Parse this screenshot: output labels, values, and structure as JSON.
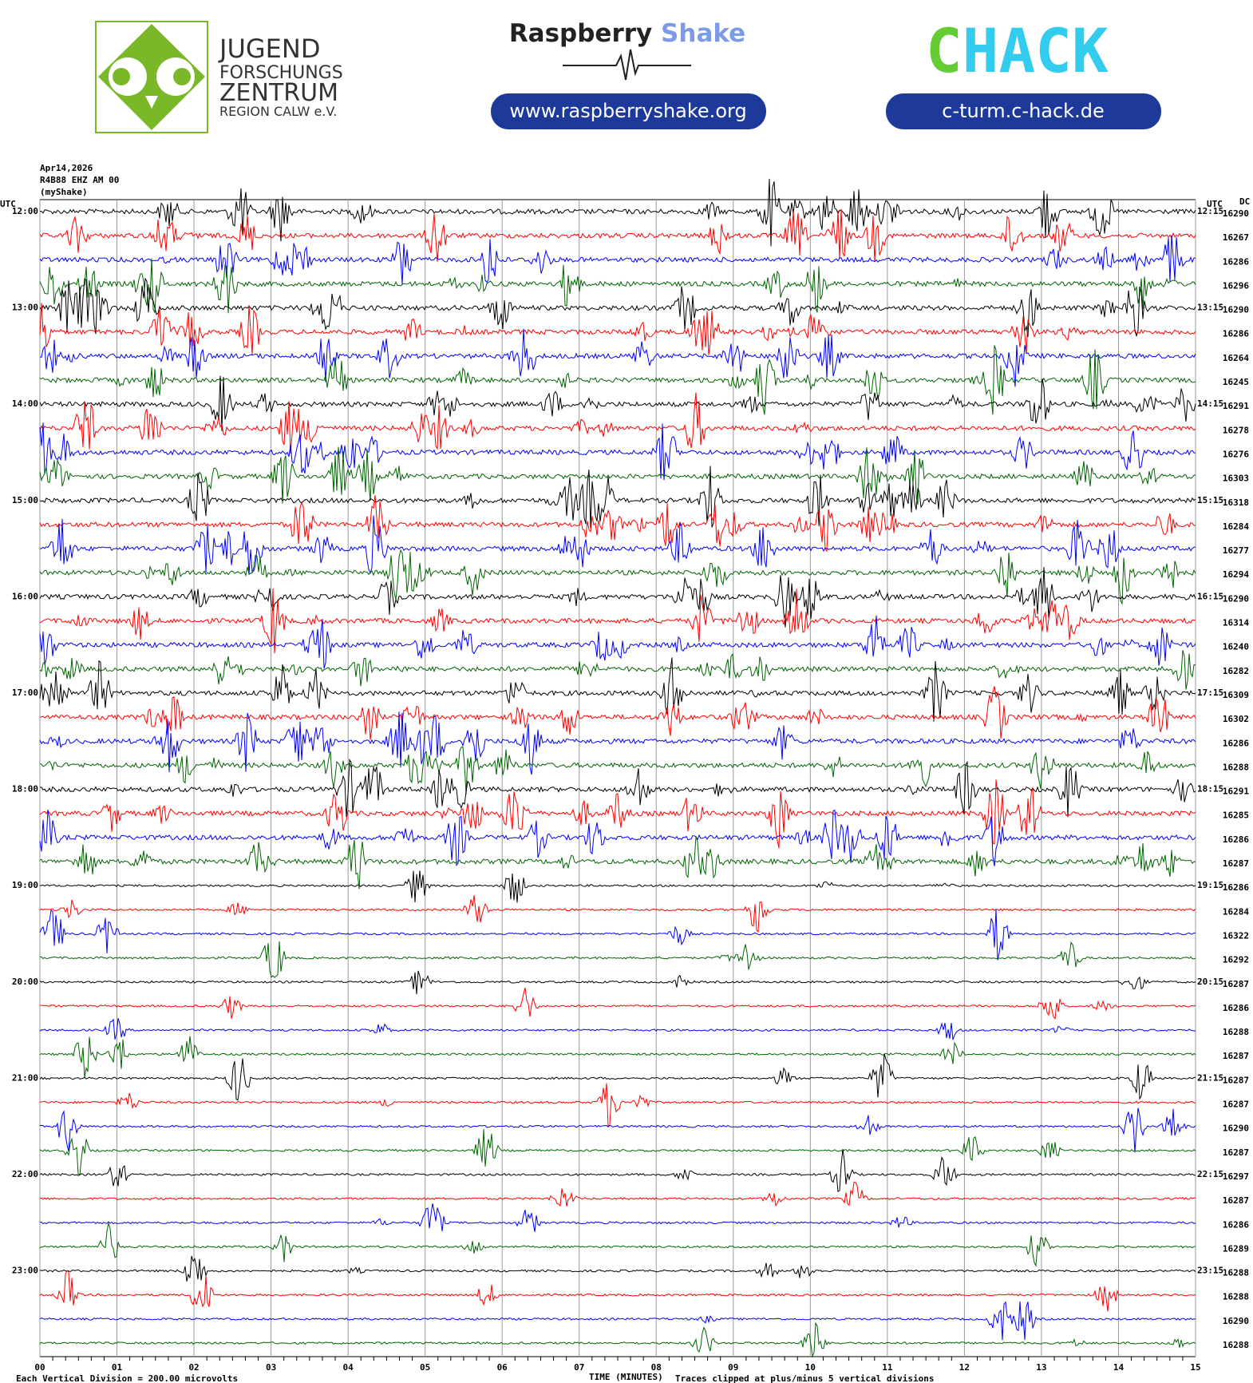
{
  "header": {
    "logo_lines": [
      "JUGEND",
      "FORSCHUNGS",
      "ZENTRUM",
      "REGION CALW e.V."
    ],
    "brand_1": "Raspberry",
    "brand_2": "Shake",
    "url_1": "www.raspberryshake.org",
    "url_2": "c-turm.c-hack.de",
    "chack_c": "C",
    "chack_rest": "HACK"
  },
  "plot": {
    "date": "Apr14,2026",
    "station": "R4B88 EHZ AM 00",
    "source": "(myShake)",
    "utc_left": "UTC",
    "utc_right": "UTC",
    "dc_header": "DC",
    "left_times": [
      "12:00",
      "13:00",
      "14:00",
      "15:00",
      "16:00",
      "17:00",
      "18:00",
      "19:00",
      "20:00",
      "21:00",
      "22:00",
      "23:00"
    ],
    "right_times": [
      "12:15",
      "13:15",
      "14:15",
      "15:15",
      "16:15",
      "17:15",
      "18:15",
      "19:15",
      "20:15",
      "21:15",
      "22:15",
      "23:15"
    ],
    "dc_values": [
      "16290",
      "16267",
      "16286",
      "16296",
      "16290",
      "16286",
      "16264",
      "16245",
      "16291",
      "16278",
      "16276",
      "16303",
      "16318",
      "16284",
      "16277",
      "16294",
      "16290",
      "16314",
      "16240",
      "16282",
      "16309",
      "16302",
      "16286",
      "16288",
      "16291",
      "16285",
      "16286",
      "16287",
      "16286",
      "16284",
      "16322",
      "16292",
      "16287",
      "16286",
      "16288",
      "16287",
      "16287",
      "16287",
      "16290",
      "16287",
      "16297",
      "16287",
      "16286",
      "16289",
      "16288",
      "16288",
      "16290",
      "16288"
    ],
    "trace_colors": [
      "#000000",
      "#ff0000",
      "#0000ff",
      "#006400"
    ],
    "x_ticks": [
      "00",
      "01",
      "02",
      "03",
      "04",
      "05",
      "06",
      "07",
      "08",
      "09",
      "10",
      "11",
      "12",
      "13",
      "14",
      "15"
    ],
    "x_title": "TIME (MINUTES)",
    "footer_left": "Each Vertical Division =  200.00 microvolts",
    "footer_right": "Traces clipped at plus/minus 5 vertical divisions"
  }
}
